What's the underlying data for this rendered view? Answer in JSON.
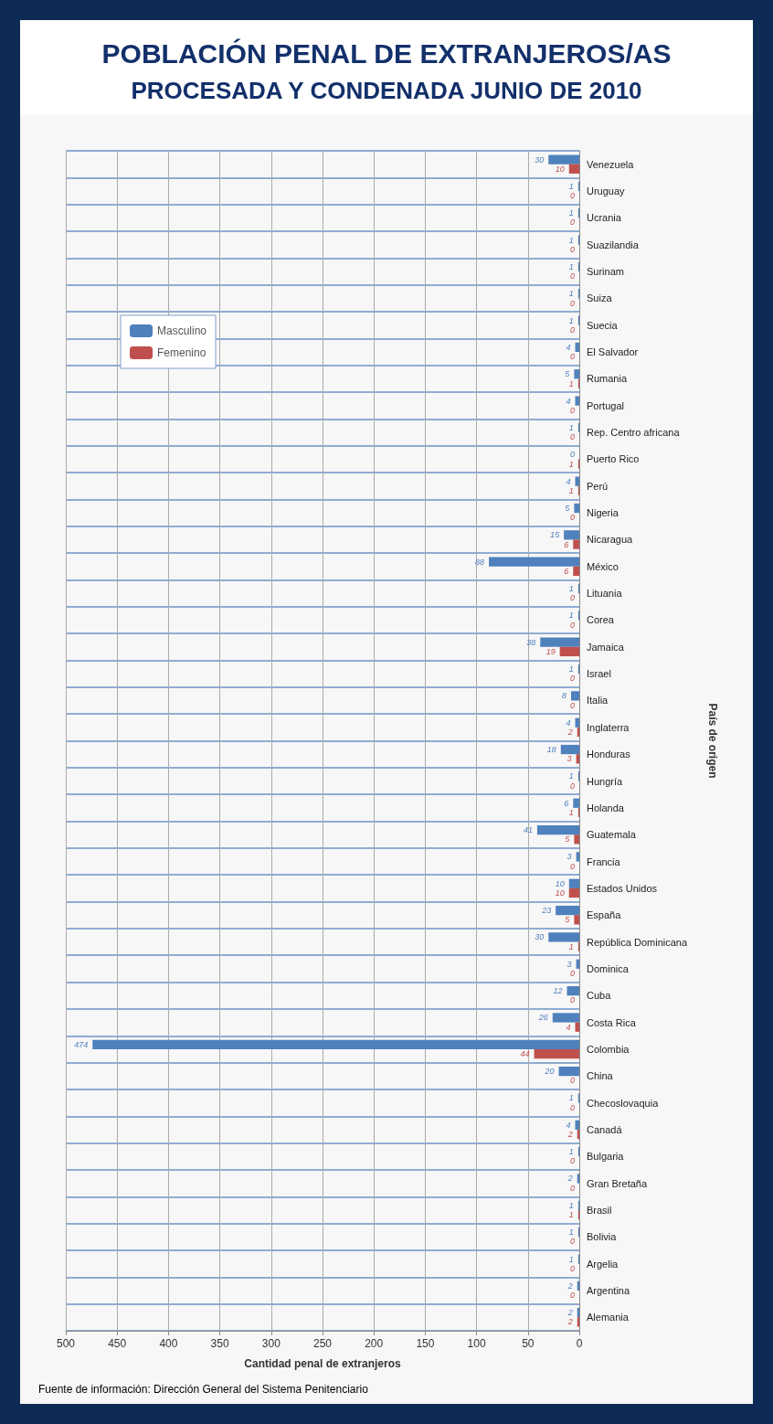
{
  "chart_data": {
    "type": "bar",
    "orientation": "horizontal",
    "title": "POBLACIÓN PENAL DE EXTRANJEROS/AS",
    "subtitle": "PROCESADA  Y CONDENADA JUNIO DE 2010",
    "categories": [
      "Venezuela",
      "Uruguay",
      "Ucrania",
      "Suazilandia",
      "Surinam",
      "Suiza",
      "Suecia",
      "El Salvador",
      "Rumania",
      "Portugal",
      "Rep. Centro africana",
      "Puerto Rico",
      "Perú",
      "Nigeria",
      "Nicaragua",
      "México",
      "Lituania",
      "Corea",
      "Jamaica",
      "Israel",
      "Italia",
      "Inglaterra",
      "Honduras",
      "Hungría",
      "Holanda",
      "Guatemala",
      "Francia",
      "Estados Unidos",
      "España",
      "República Dominicana",
      "Dominica",
      "Cuba",
      "Costa Rica",
      "Colombia",
      "China",
      "Checoslovaquia",
      "Canadá",
      "Bulgaria",
      "Gran Bretaña",
      "Brasil",
      "Bolivia",
      "Argelia",
      "Argentina",
      "Alemania"
    ],
    "series": [
      {
        "name": "Masculino",
        "color": "#4f81bd",
        "values": [
          30,
          1,
          1,
          1,
          1,
          1,
          1,
          4,
          5,
          4,
          1,
          0,
          4,
          5,
          15,
          88,
          1,
          1,
          38,
          1,
          8,
          4,
          18,
          1,
          6,
          41,
          3,
          10,
          23,
          30,
          3,
          12,
          26,
          474,
          20,
          1,
          4,
          1,
          2,
          1,
          1,
          1,
          2,
          2
        ]
      },
      {
        "name": "Femenino",
        "color": "#c0504d",
        "values": [
          10,
          0,
          0,
          0,
          0,
          0,
          0,
          0,
          1,
          0,
          0,
          1,
          1,
          0,
          6,
          6,
          0,
          0,
          19,
          0,
          0,
          2,
          3,
          0,
          1,
          5,
          0,
          10,
          5,
          1,
          0,
          0,
          4,
          44,
          0,
          0,
          2,
          0,
          0,
          1,
          0,
          0,
          0,
          2
        ]
      }
    ],
    "xlim": [
      500,
      0
    ],
    "xticks": [
      0,
      50,
      100,
      150,
      200,
      250,
      300,
      350,
      400,
      450,
      500
    ],
    "xlabel": "Cantidad penal de extranjeros",
    "ylabel": "País de origen",
    "annotations": [
      "Fuente de información: Dirección General del Sistema Penitenciario"
    ],
    "data_labels": true,
    "grid": true,
    "legend": "top left"
  }
}
